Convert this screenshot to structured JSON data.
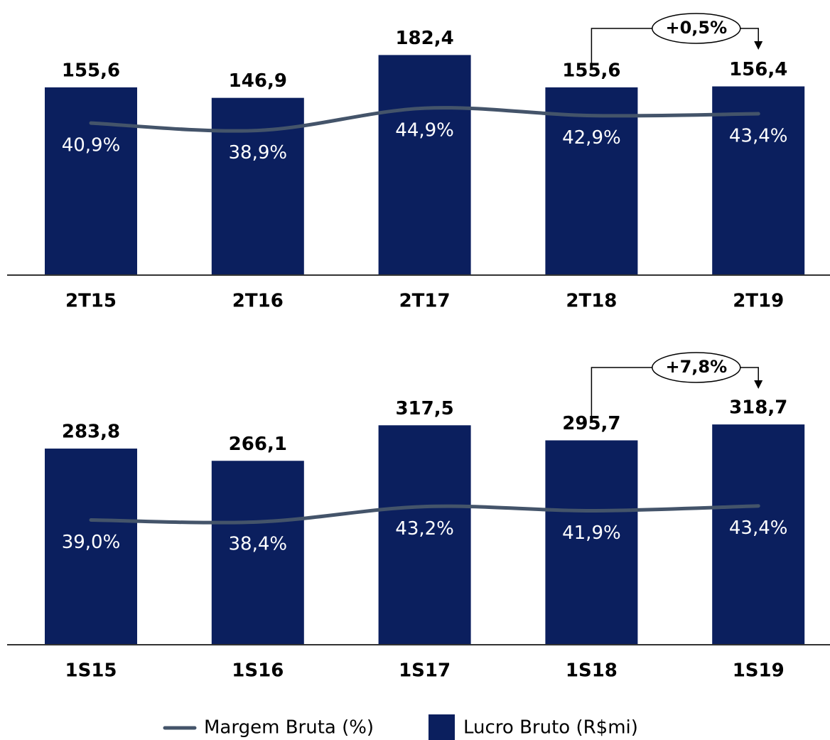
{
  "chart_data": [
    {
      "type": "bar",
      "categories": [
        "2T15",
        "2T16",
        "2T17",
        "2T18",
        "2T19"
      ],
      "series": [
        {
          "name": "Lucro Bruto (R$mi)",
          "type": "bar",
          "color": "#0b1f5e",
          "values": [
            155.6,
            146.9,
            182.4,
            155.6,
            156.4
          ],
          "value_labels": [
            "155,6",
            "146,9",
            "182,4",
            "155,6",
            "156,4"
          ]
        },
        {
          "name": "Margem Bruta (%)",
          "type": "line",
          "axis": "y2",
          "color": "#44546a",
          "values": [
            40.9,
            38.9,
            44.9,
            42.9,
            43.4
          ],
          "value_labels": [
            "40,9%",
            "38,9%",
            "44,9%",
            "42,9%",
            "43,4%"
          ]
        }
      ],
      "ylim": [
        0,
        228
      ],
      "y2lim": [
        0,
        74
      ],
      "annotation": "+0,5%"
    },
    {
      "type": "bar",
      "categories": [
        "1S15",
        "1S16",
        "1S17",
        "1S18",
        "1S19"
      ],
      "series": [
        {
          "type": "bar",
          "color": "#0b1f5e",
          "values": [
            283.8,
            266.1,
            317.5,
            295.7,
            318.7
          ],
          "value_labels": [
            "283,8",
            "266,1",
            "317,5",
            "295,7",
            "318,7"
          ]
        },
        {
          "type": "line",
          "axis": "y2",
          "color": "#44546a",
          "values": [
            39.0,
            38.4,
            43.2,
            41.9,
            43.4
          ],
          "value_labels": [
            "39,0%",
            "38,4%",
            "43,2%",
            "41,9%",
            "43,4%"
          ]
        }
      ],
      "ylim": [
        0,
        398
      ],
      "y2lim": [
        0,
        86
      ],
      "annotation": "+7,8%"
    }
  ]
}
